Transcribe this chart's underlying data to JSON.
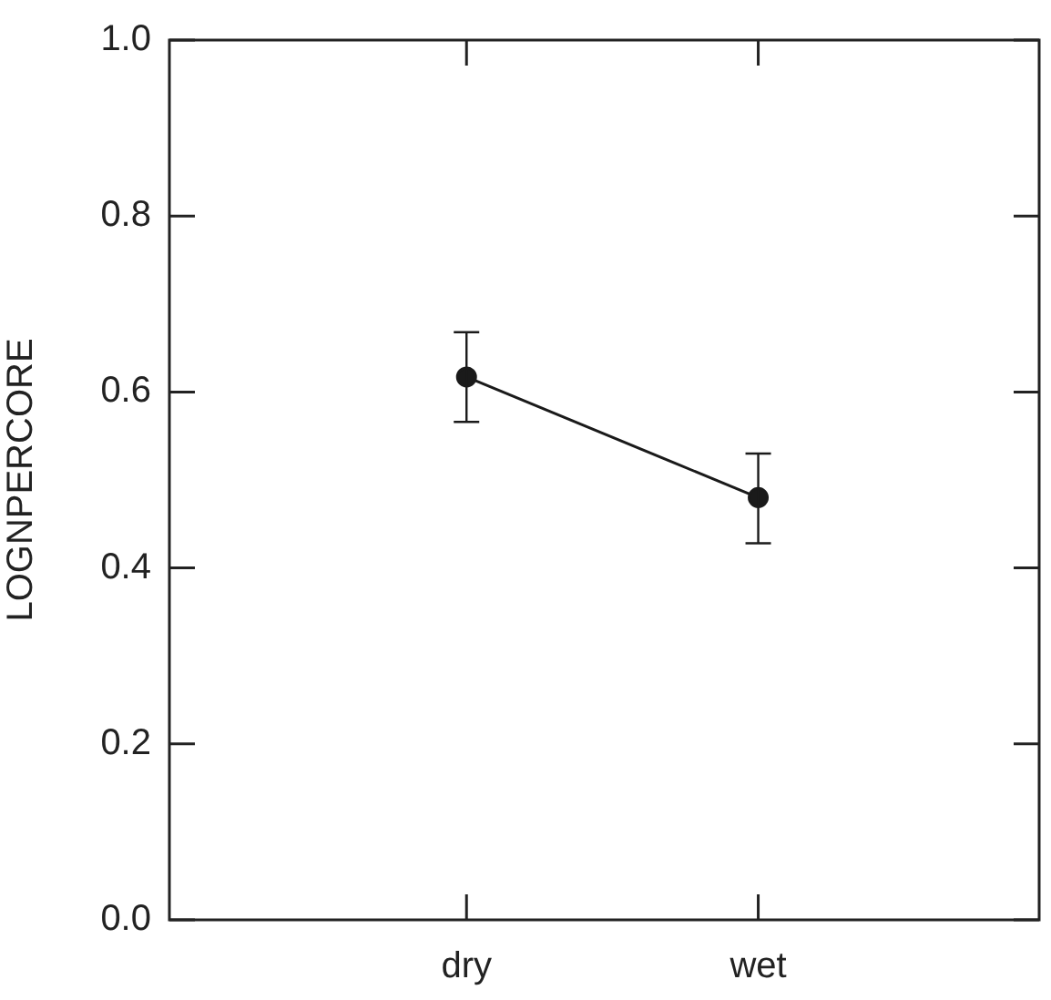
{
  "chart_data": {
    "type": "line",
    "ylabel": "LOGNPERCORE",
    "categories": [
      "dry",
      "wet"
    ],
    "series": [
      {
        "color": "#1a1a1a",
        "values": [
          0.617,
          0.48
        ],
        "errors": [
          [
            0.566,
            0.668
          ],
          [
            0.428,
            0.53
          ]
        ]
      }
    ],
    "ylim": [
      0,
      1
    ],
    "yticks": [
      {
        "value": 0,
        "label": "0.0"
      },
      {
        "value": 0.2,
        "label": "0.2"
      },
      {
        "value": 0.4,
        "label": "0.4"
      },
      {
        "value": 0.6,
        "label": "0.6"
      },
      {
        "value": 0.8,
        "label": "0.8"
      },
      {
        "value": 1,
        "label": "1.0"
      }
    ],
    "grid": false,
    "legend": false,
    "marker": "circle",
    "line_style": "solid"
  }
}
